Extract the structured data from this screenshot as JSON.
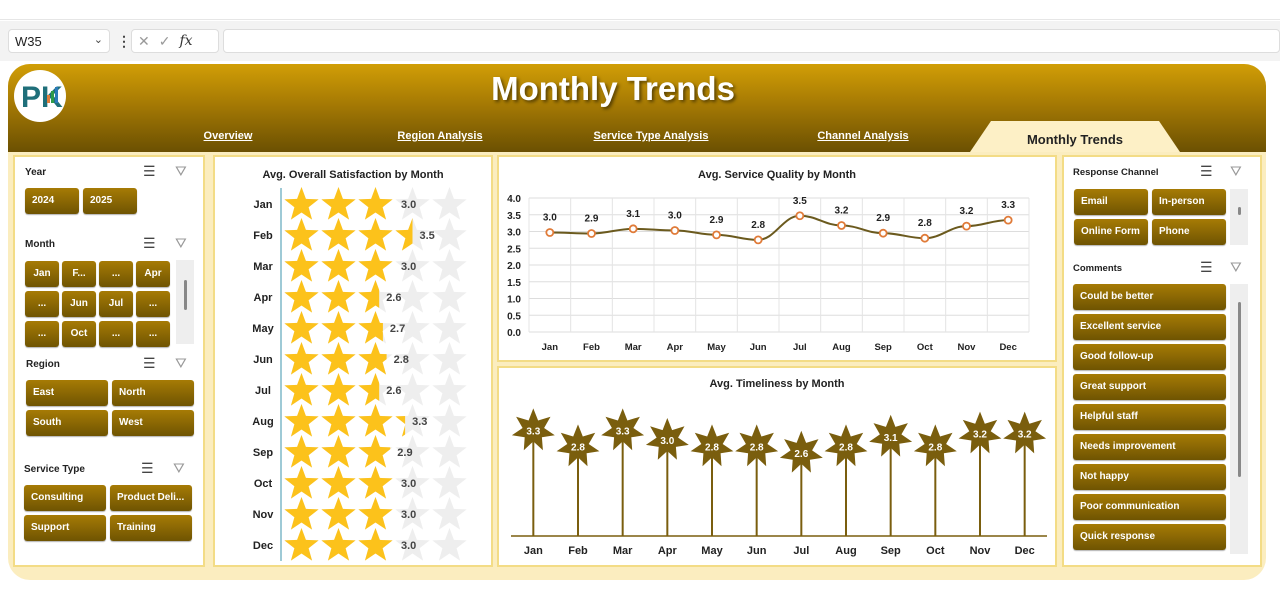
{
  "excel": {
    "name_box": "W35",
    "fx": "fx",
    "cancel": "✕",
    "enter": "✓",
    "formula": ""
  },
  "header": {
    "title": "Monthly Trends",
    "logo_text": "PK"
  },
  "tabs": [
    {
      "label": "Overview"
    },
    {
      "label": "Region Analysis"
    },
    {
      "label": "Service Type  Analysis"
    },
    {
      "label": "Channel  Analysis"
    },
    {
      "label": "Monthly Trends",
      "active": true
    }
  ],
  "slicers": {
    "year": {
      "title": "Year",
      "items": [
        "2024",
        "2025"
      ]
    },
    "month": {
      "title": "Month",
      "items": [
        "Jan",
        "F...",
        "...",
        "Apr",
        "...",
        "Jun",
        "Jul",
        "...",
        "...",
        "Oct",
        "...",
        "..."
      ]
    },
    "region": {
      "title": "Region",
      "items": [
        "East",
        "North",
        "South",
        "West"
      ]
    },
    "service_type": {
      "title": "Service Type",
      "items": [
        "Consulting",
        "Product Deli...",
        "Support",
        "Training"
      ]
    },
    "response_channel": {
      "title": "Response Channel",
      "items": [
        "Email",
        "In-person",
        "Online Form",
        "Phone"
      ]
    },
    "comments": {
      "title": "Comments",
      "items": [
        "Could be better",
        "Excellent service",
        "Good follow-up",
        "Great support",
        "Helpful staff",
        "Needs improvement",
        "Not happy",
        "Poor communication",
        "Quick response"
      ]
    }
  },
  "colors": {
    "gold": "#a67b05",
    "star": "#fcc21b",
    "star_bg": "#eeeeee",
    "line": "#6b5a1e",
    "marker": "#e07b39",
    "timeliness": "#7a5e0e"
  },
  "chart_data": [
    {
      "type": "bar",
      "title": "Avg. Overall Satisfaction by Month",
      "categories": [
        "Jan",
        "Feb",
        "Mar",
        "Apr",
        "May",
        "Jun",
        "Jul",
        "Aug",
        "Sep",
        "Oct",
        "Nov",
        "Dec"
      ],
      "values": [
        3.0,
        3.5,
        3.0,
        2.6,
        2.7,
        2.8,
        2.6,
        3.3,
        2.9,
        3.0,
        3.0,
        3.0
      ],
      "labels": [
        "3.0",
        "3.5",
        "3.0",
        "2.6",
        "2.7",
        "2.8",
        "2.6",
        "3.3",
        "2.9",
        "3.0",
        "3.0",
        "3.0"
      ],
      "max": 5,
      "style": "star-pictograph"
    },
    {
      "type": "line",
      "title": "Avg. Service Quality by Month",
      "categories": [
        "Jan",
        "Feb",
        "Mar",
        "Apr",
        "May",
        "Jun",
        "Jul",
        "Aug",
        "Sep",
        "Oct",
        "Nov",
        "Dec"
      ],
      "values": [
        2.97,
        2.94,
        3.08,
        3.03,
        2.9,
        2.75,
        3.47,
        3.18,
        2.95,
        2.8,
        3.16,
        3.34
      ],
      "labels": [
        "3.0",
        "2.9",
        "3.1",
        "3.0",
        "2.9",
        "2.8",
        "3.5",
        "3.2",
        "2.9",
        "2.8",
        "3.2",
        "3.3"
      ],
      "ylim": [
        0,
        4
      ],
      "yticks": [
        "0.0",
        "0.5",
        "1.0",
        "1.5",
        "2.0",
        "2.5",
        "3.0",
        "3.5",
        "4.0"
      ],
      "grid": true,
      "smooth": true
    },
    {
      "type": "bar",
      "title": "Avg. Timeliness by Month",
      "categories": [
        "Jan",
        "Feb",
        "Mar",
        "Apr",
        "May",
        "Jun",
        "Jul",
        "Aug",
        "Sep",
        "Oct",
        "Nov",
        "Dec"
      ],
      "values": [
        3.3,
        2.8,
        3.3,
        3.0,
        2.8,
        2.8,
        2.6,
        2.8,
        3.1,
        2.8,
        3.2,
        3.2
      ],
      "labels": [
        "3.3",
        "2.8",
        "3.3",
        "3.0",
        "2.8",
        "2.8",
        "2.6",
        "2.8",
        "3.1",
        "2.8",
        "3.2",
        "3.2"
      ],
      "ylim": [
        0,
        4
      ],
      "style": "lollipop-star"
    }
  ]
}
